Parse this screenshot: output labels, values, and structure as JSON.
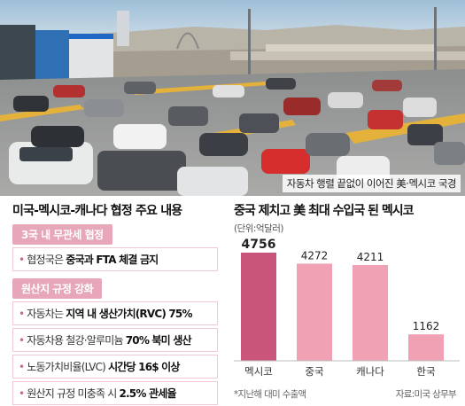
{
  "photo": {
    "caption": "자동차 행렬 끝없이 이어진 美·멕시코 국경"
  },
  "agreement": {
    "title": "미국-멕시코-캐나다 협정 주요 내용",
    "section1": {
      "heading": "3국 내 무관세 협정",
      "items": [
        {
          "prefix": "협정국은 ",
          "bold": "중국과 FTA 체결 금지",
          "suffix": ""
        }
      ]
    },
    "section2": {
      "heading": "원산지 규정 강화",
      "items": [
        {
          "prefix": "자동차는 ",
          "bold": "지역 내 생산가치(RVC) 75%",
          "suffix": ""
        },
        {
          "prefix": "자동차용 철강·알루미늄 ",
          "bold": "70% 북미 생산",
          "suffix": ""
        },
        {
          "prefix": "노동가치비율(LVC) ",
          "bold": "시간당 16$ 이상",
          "suffix": ""
        },
        {
          "prefix": "원산지 규정 미충족 시 ",
          "bold": "2.5% 관세율",
          "suffix": ""
        }
      ]
    }
  },
  "chart_data": {
    "type": "bar",
    "title": "중국 제치고 美 최대 수입국 된 멕시코",
    "unit": "(단위:억달러)",
    "categories": [
      "멕시코",
      "중국",
      "캐나다",
      "한국"
    ],
    "values": [
      4756,
      4272,
      4211,
      1162
    ],
    "ylim": [
      0,
      4756
    ],
    "colors": [
      "#c9557a",
      "#f0a1b4",
      "#f0a1b4",
      "#f0a1b4"
    ],
    "note": "*지난해 대미 수출액",
    "source": "자료:미국 상무부"
  }
}
